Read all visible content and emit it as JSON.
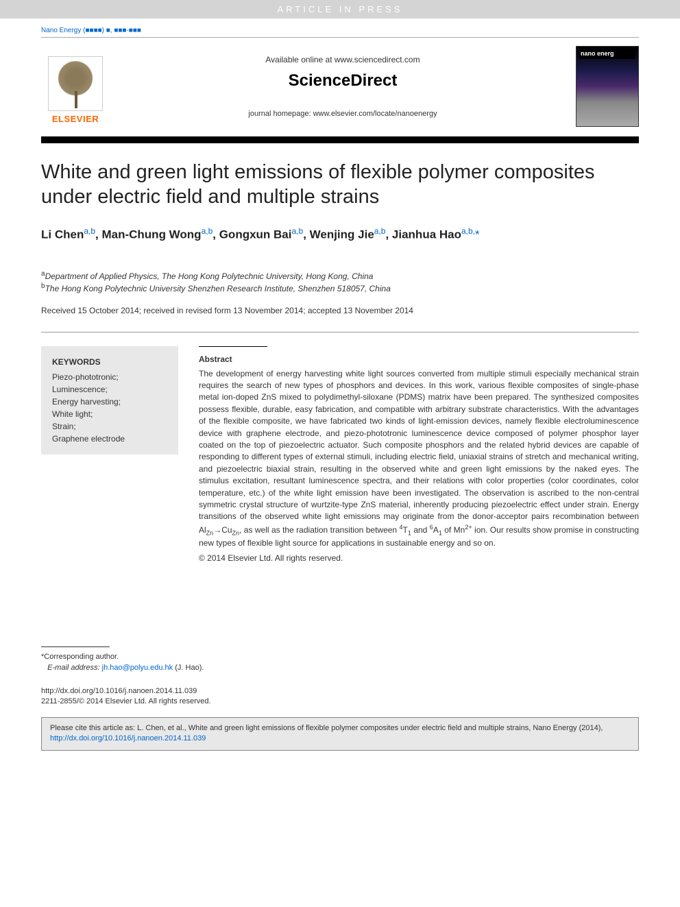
{
  "banner": "ARTICLE IN PRESS",
  "journal_ref": {
    "name": "Nano Energy",
    "placeholder": "(■■■■) ■, ■■■-■■■"
  },
  "header": {
    "available": "Available online at www.sciencedirect.com",
    "brand": "ScienceDirect",
    "homepage": "journal homepage: www.elsevier.com/locate/nanoenergy",
    "elsevier": "ELSEVIER",
    "cover_title": "nano energ"
  },
  "title": "White and green light emissions of flexible polymer composites under electric field and multiple strains",
  "authors_html": "Li Chen<sup>a,b</sup>, Man-Chung Wong<sup>a,b</sup>, Gongxun Bai<sup>a,b</sup>, Wenjing Jie<sup>a,b</sup>, Jianhua Hao<sup>a,b,</sup><span class='star'>*</span>",
  "affiliations": {
    "a": "Department of Applied Physics, The Hong Kong Polytechnic University, Hong Kong, China",
    "b": "The Hong Kong Polytechnic University Shenzhen Research Institute, Shenzhen 518057, China"
  },
  "dates": "Received 15 October 2014; received in revised form 13 November 2014; accepted 13 November 2014",
  "keywords": {
    "heading": "KEYWORDS",
    "items": [
      "Piezo-phototronic;",
      "Luminescence;",
      "Energy harvesting;",
      "White light;",
      "Strain;",
      "Graphene electrode"
    ]
  },
  "abstract": {
    "heading": "Abstract",
    "body": "The development of energy harvesting white light sources converted from multiple stimuli especially mechanical strain requires the search of new types of phosphors and devices. In this work, various flexible composites of single-phase metal ion-doped ZnS mixed to polydimethyl-siloxane (PDMS) matrix have been prepared. The synthesized composites possess flexible, durable, easy fabrication, and compatible with arbitrary substrate characteristics. With the advantages of the flexible composite, we have fabricated two kinds of light-emission devices, namely flexible electroluminescence device with graphene electrode, and piezo-phototronic luminescence device composed of polymer phosphor layer coated on the top of piezoelectric actuator. Such composite phosphors and the related hybrid devices are capable of responding to different types of external stimuli, including electric field, uniaxial strains of stretch and mechanical writing, and piezoelectric biaxial strain, resulting in the observed white and green light emissions by the naked eyes. The stimulus excitation, resultant luminescence spectra, and their relations with color properties (color coordinates, color temperature, etc.) of the white light emission have been investigated. The observation is ascribed to the non-central symmetric crystal structure of wurtzite-type ZnS material, inherently producing piezoelectric effect under strain. Energy transitions of the observed white light emissions may originate from the donor-acceptor pairs recombination between Al",
    "body_tail": ", as well as the radiation transition between ",
    "body_end": " ion. Our results show promise in constructing new types of flexible light source for applications in sustainable energy and so on.",
    "copyright": "© 2014 Elsevier Ltd. All rights reserved."
  },
  "footer": {
    "corresp_label": "*Corresponding author.",
    "email_label": "E-mail address:",
    "email": "jh.hao@polyu.edu.hk",
    "email_person": "(J. Hao).",
    "doi": "http://dx.doi.org/10.1016/j.nanoen.2014.11.039",
    "issn_line": "2211-2855/© 2014 Elsevier Ltd. All rights reserved."
  },
  "citebox": {
    "text": "Please cite this article as: L. Chen, et al., White and green light emissions of flexible polymer composites under electric field and multiple strains, Nano Energy (2014), ",
    "link": "http://dx.doi.org/10.1016/j.nanoen.2014.11.039"
  },
  "colors": {
    "banner_bg": "#d4d4d4",
    "link": "#0066cc",
    "elsevier_orange": "#ff6600",
    "keywords_bg": "#e8e8e8",
    "text": "#333333"
  },
  "typography": {
    "title_fontsize": 29,
    "author_fontsize": 17,
    "body_fontsize": 12,
    "banner_letterspacing": 4
  }
}
